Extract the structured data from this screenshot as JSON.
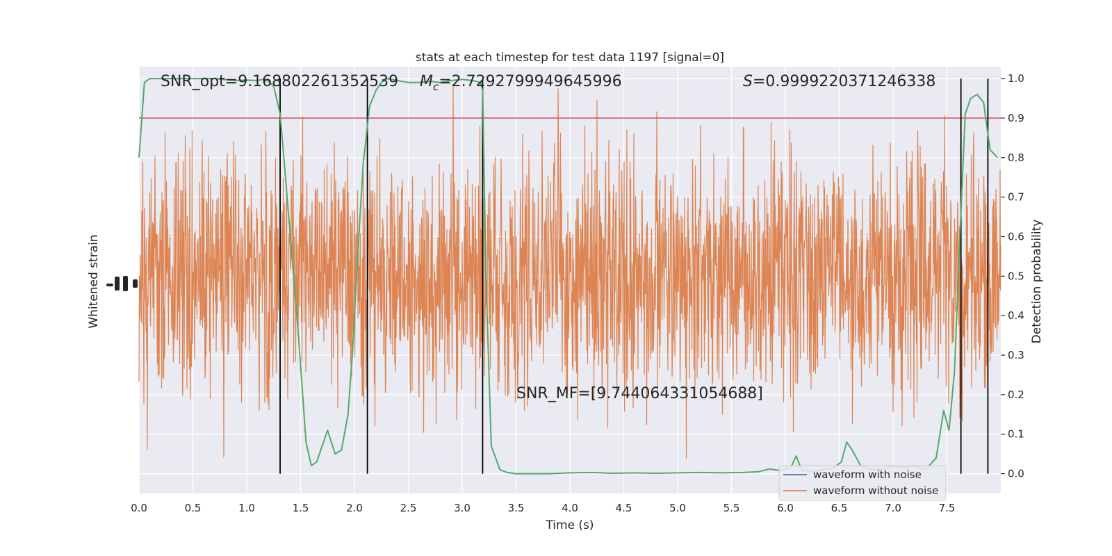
{
  "chart_data": {
    "type": "line",
    "title": "stats at each timestep for test data 1197 [signal=0]",
    "xlabel": "Time (s)",
    "ylabel_left": "Whitened strain",
    "ylabel_right": "Detection probability",
    "xlim": [
      0,
      8.0
    ],
    "ylim_right": [
      -0.05,
      1.03
    ],
    "x_ticks": [
      "0.0",
      "0.5",
      "1.0",
      "1.5",
      "2.0",
      "2.5",
      "3.0",
      "3.5",
      "4.0",
      "4.5",
      "5.0",
      "5.5",
      "6.0",
      "6.5",
      "7.0",
      "7.5"
    ],
    "right_ticks": [
      "0.0",
      "0.1",
      "0.2",
      "0.3",
      "0.4",
      "0.5",
      "0.6",
      "0.7",
      "0.8",
      "0.9",
      "1.0"
    ],
    "grid": true,
    "threshold": 0.9,
    "vlines": [
      1.31,
      2.12,
      3.19,
      7.63,
      7.88
    ],
    "annotations": {
      "snr_opt": "SNR_opt=9.168802261352539",
      "mc_symbol": "M",
      "mc_sub": "c",
      "mc_value": "=2.7292799949645996",
      "s_symbol": "S",
      "s_value": "=0.9999220371246338",
      "snr_mf": "SNR_MF=[9.744064331054688]"
    },
    "series": [
      {
        "name": "waveform with noise",
        "color": "#4c72b0"
      },
      {
        "name": "waveform without noise",
        "color": "#dd8452"
      },
      {
        "color": "#55a868",
        "x": [
          0.0,
          0.05,
          0.1,
          0.15,
          0.2,
          0.3,
          0.5,
          0.7,
          0.9,
          1.0,
          1.1,
          1.15,
          1.2,
          1.25,
          1.31,
          1.36,
          1.42,
          1.48,
          1.55,
          1.6,
          1.65,
          1.7,
          1.75,
          1.82,
          1.88,
          1.94,
          1.98,
          2.03,
          2.08,
          2.14,
          2.2,
          2.25,
          2.3,
          2.4,
          2.5,
          2.6,
          2.7,
          2.8,
          2.9,
          3.0,
          3.1,
          3.17,
          3.19,
          3.22,
          3.27,
          3.35,
          3.42,
          3.5,
          3.8,
          4.0,
          4.2,
          4.4,
          4.6,
          4.8,
          5.0,
          5.2,
          5.4,
          5.6,
          5.75,
          5.85,
          5.95,
          6.05,
          6.1,
          6.15,
          6.25,
          6.35,
          6.45,
          6.52,
          6.57,
          6.62,
          6.7,
          6.8,
          6.9,
          7.0,
          7.1,
          7.2,
          7.3,
          7.4,
          7.47,
          7.52,
          7.57,
          7.62,
          7.67,
          7.72,
          7.78,
          7.84,
          7.9,
          7.97
        ],
        "y": [
          0.8,
          0.99,
          1.0,
          1.0,
          1.0,
          1.0,
          1.0,
          1.0,
          0.995,
          0.996,
          0.995,
          0.998,
          0.994,
          0.98,
          0.91,
          0.75,
          0.55,
          0.35,
          0.08,
          0.02,
          0.03,
          0.07,
          0.11,
          0.05,
          0.06,
          0.15,
          0.3,
          0.55,
          0.78,
          0.93,
          0.97,
          0.99,
          1.0,
          0.995,
          0.99,
          0.99,
          0.993,
          0.99,
          0.995,
          0.998,
          0.995,
          0.99,
          0.97,
          0.5,
          0.07,
          0.01,
          0.003,
          0.0,
          0.0,
          0.002,
          0.003,
          0.001,
          0.002,
          0.001,
          0.002,
          0.003,
          0.002,
          0.003,
          0.005,
          0.012,
          0.008,
          0.015,
          0.045,
          0.01,
          0.005,
          0.01,
          0.015,
          0.03,
          0.08,
          0.06,
          0.02,
          0.01,
          0.012,
          0.02,
          0.015,
          0.02,
          0.01,
          0.04,
          0.16,
          0.11,
          0.26,
          0.6,
          0.91,
          0.95,
          0.96,
          0.94,
          0.82,
          0.8
        ]
      }
    ]
  }
}
